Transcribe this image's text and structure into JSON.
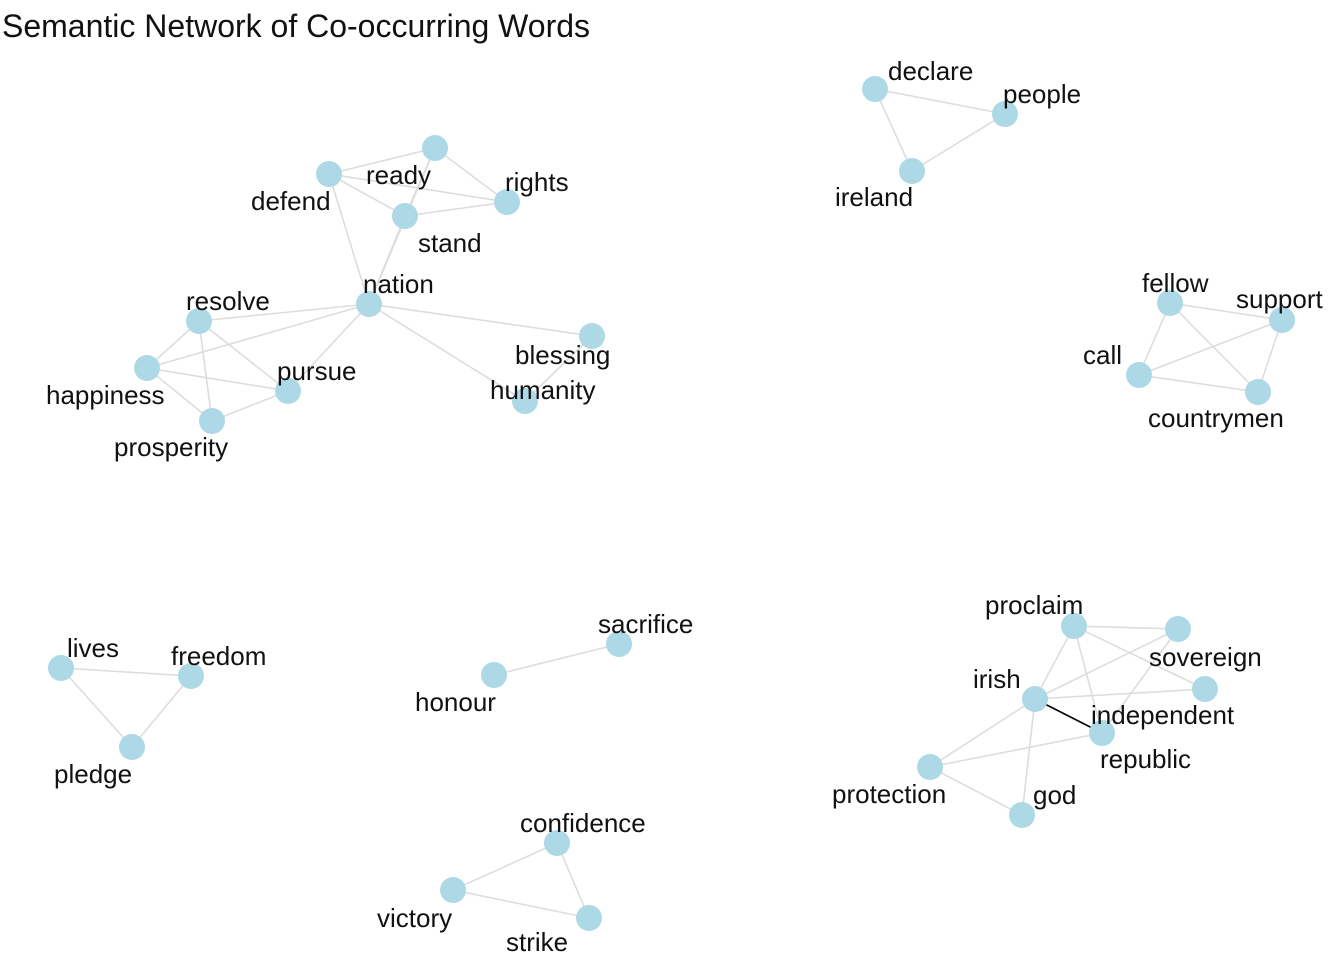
{
  "title": "Semantic Network of Co-occurring Words",
  "colors": {
    "node": "#add8e6",
    "edge": "#dddddd",
    "strong_edge": "#000000",
    "text": "#111111"
  },
  "nodes": [
    {
      "id": "declare",
      "label": "declare"
    },
    {
      "id": "people",
      "label": "people"
    },
    {
      "id": "ireland",
      "label": "ireland"
    },
    {
      "id": "ready",
      "label": "ready"
    },
    {
      "id": "defend",
      "label": "defend"
    },
    {
      "id": "rights",
      "label": "rights"
    },
    {
      "id": "stand",
      "label": "stand"
    },
    {
      "id": "nation",
      "label": "nation"
    },
    {
      "id": "resolve",
      "label": "resolve"
    },
    {
      "id": "happiness",
      "label": "happiness"
    },
    {
      "id": "pursue",
      "label": "pursue"
    },
    {
      "id": "prosperity",
      "label": "prosperity"
    },
    {
      "id": "blessing",
      "label": "blessing"
    },
    {
      "id": "humanity",
      "label": "humanity"
    },
    {
      "id": "fellow",
      "label": "fellow"
    },
    {
      "id": "support",
      "label": "support"
    },
    {
      "id": "call",
      "label": "call"
    },
    {
      "id": "countrymen",
      "label": "countrymen"
    },
    {
      "id": "lives",
      "label": "lives"
    },
    {
      "id": "freedom",
      "label": "freedom"
    },
    {
      "id": "pledge",
      "label": "pledge"
    },
    {
      "id": "sacrifice",
      "label": "sacrifice"
    },
    {
      "id": "honour",
      "label": "honour"
    },
    {
      "id": "confidence",
      "label": "confidence"
    },
    {
      "id": "victory",
      "label": "victory"
    },
    {
      "id": "strike",
      "label": "strike"
    },
    {
      "id": "proclaim",
      "label": "proclaim"
    },
    {
      "id": "sovereign",
      "label": "sovereign"
    },
    {
      "id": "irish",
      "label": "irish"
    },
    {
      "id": "independent",
      "label": "independent"
    },
    {
      "id": "republic",
      "label": "republic"
    },
    {
      "id": "protection",
      "label": "protection"
    },
    {
      "id": "god",
      "label": "god"
    }
  ],
  "edges": [
    {
      "source": "declare",
      "target": "people"
    },
    {
      "source": "declare",
      "target": "ireland"
    },
    {
      "source": "people",
      "target": "ireland"
    },
    {
      "source": "defend",
      "target": "ready"
    },
    {
      "source": "defend",
      "target": "stand"
    },
    {
      "source": "defend",
      "target": "rights"
    },
    {
      "source": "defend",
      "target": "nation"
    },
    {
      "source": "ready",
      "target": "rights"
    },
    {
      "source": "ready",
      "target": "stand"
    },
    {
      "source": "ready",
      "target": "nation"
    },
    {
      "source": "stand",
      "target": "rights"
    },
    {
      "source": "stand",
      "target": "nation"
    },
    {
      "source": "nation",
      "target": "resolve"
    },
    {
      "source": "nation",
      "target": "happiness"
    },
    {
      "source": "nation",
      "target": "pursue"
    },
    {
      "source": "nation",
      "target": "blessing"
    },
    {
      "source": "nation",
      "target": "humanity"
    },
    {
      "source": "blessing",
      "target": "humanity"
    },
    {
      "source": "resolve",
      "target": "happiness"
    },
    {
      "source": "resolve",
      "target": "prosperity"
    },
    {
      "source": "resolve",
      "target": "pursue"
    },
    {
      "source": "happiness",
      "target": "prosperity"
    },
    {
      "source": "happiness",
      "target": "pursue"
    },
    {
      "source": "prosperity",
      "target": "pursue"
    },
    {
      "source": "fellow",
      "target": "support"
    },
    {
      "source": "fellow",
      "target": "call"
    },
    {
      "source": "fellow",
      "target": "countrymen"
    },
    {
      "source": "call",
      "target": "support"
    },
    {
      "source": "call",
      "target": "countrymen"
    },
    {
      "source": "support",
      "target": "countrymen"
    },
    {
      "source": "lives",
      "target": "freedom"
    },
    {
      "source": "lives",
      "target": "pledge"
    },
    {
      "source": "freedom",
      "target": "pledge"
    },
    {
      "source": "honour",
      "target": "sacrifice"
    },
    {
      "source": "confidence",
      "target": "victory"
    },
    {
      "source": "confidence",
      "target": "strike"
    },
    {
      "source": "victory",
      "target": "strike"
    },
    {
      "source": "proclaim",
      "target": "sovereign"
    },
    {
      "source": "proclaim",
      "target": "irish"
    },
    {
      "source": "proclaim",
      "target": "independent"
    },
    {
      "source": "proclaim",
      "target": "republic"
    },
    {
      "source": "sovereign",
      "target": "irish"
    },
    {
      "source": "sovereign",
      "target": "republic"
    },
    {
      "source": "irish",
      "target": "independent"
    },
    {
      "source": "irish",
      "target": "republic",
      "strong": true
    },
    {
      "source": "irish",
      "target": "protection"
    },
    {
      "source": "irish",
      "target": "god"
    },
    {
      "source": "republic",
      "target": "protection"
    },
    {
      "source": "protection",
      "target": "god"
    }
  ]
}
